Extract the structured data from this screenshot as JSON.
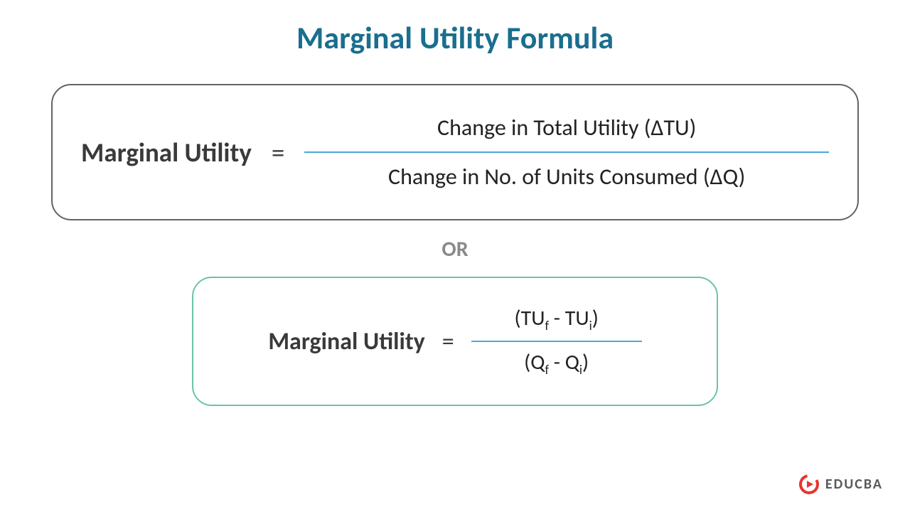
{
  "title": {
    "text": "Marginal Utility Formula",
    "color": "#1a6e8e",
    "fontsize": 44
  },
  "formula1": {
    "label": "Marginal Utility",
    "equals": "=",
    "numerator": "Change in Total Utility (ΔTU)",
    "denominator": "Change in No. of Units Consumed (ΔQ)",
    "label_color": "#3a3a3a",
    "label_fontsize": 37,
    "text_color": "#222222",
    "text_fontsize": 32,
    "border_color": "#646464",
    "frac_line_color": "#4aa8d8"
  },
  "or": {
    "text": "OR",
    "color": "#8a8a8a",
    "fontsize": 30
  },
  "formula2": {
    "label": "Marginal Utility",
    "equals": "=",
    "numerator_html": "(TU<sub>f</sub> - TU<sub>i</sub>)",
    "denominator_html": "(Q<sub>f</sub> - Q<sub>i</sub>)",
    "label_color": "#3a3a3a",
    "label_fontsize": 34,
    "text_color": "#222222",
    "text_fontsize": 30,
    "border_color": "#6bc4a6",
    "frac_line_color": "#4aa8d8"
  },
  "logo": {
    "text": "EDUCBA",
    "text_color": "#5a5a5a",
    "text_fontsize": 20,
    "icon_color": "#e8352e"
  },
  "background_color": "#ffffff"
}
